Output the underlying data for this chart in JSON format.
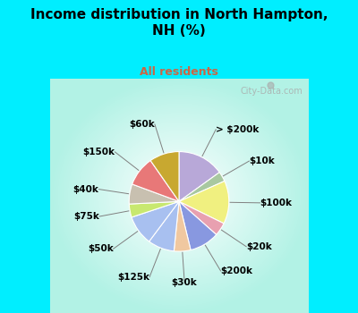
{
  "title": "Income distribution in North Hampton,\nNH (%)",
  "subtitle": "All residents",
  "title_color": "#000000",
  "subtitle_color": "#cc6644",
  "background_cyan": "#00eeff",
  "watermark": "City-Data.com",
  "slices": [
    {
      "label": "> $200k",
      "value": 14,
      "color": "#b8a8d8"
    },
    {
      "label": "$10k",
      "value": 3,
      "color": "#a8c8a0"
    },
    {
      "label": "$100k",
      "value": 13,
      "color": "#f0f080"
    },
    {
      "label": "$20k",
      "value": 4,
      "color": "#e8a0b0"
    },
    {
      "label": "$200k",
      "value": 9,
      "color": "#8898e0"
    },
    {
      "label": "$30k",
      "value": 5,
      "color": "#f0c8a0"
    },
    {
      "label": "$125k",
      "value": 8,
      "color": "#a8c0f0"
    },
    {
      "label": "$50k",
      "value": 9,
      "color": "#a8c0f0"
    },
    {
      "label": "$75k",
      "value": 4,
      "color": "#c8e870"
    },
    {
      "label": "$40k",
      "value": 6,
      "color": "#c8c0b0"
    },
    {
      "label": "$150k",
      "value": 9,
      "color": "#e87878"
    },
    {
      "label": "$60k",
      "value": 9,
      "color": "#c8a830"
    }
  ],
  "label_fontsize": 7.5,
  "figsize": [
    4.0,
    3.5
  ],
  "dpi": 100
}
